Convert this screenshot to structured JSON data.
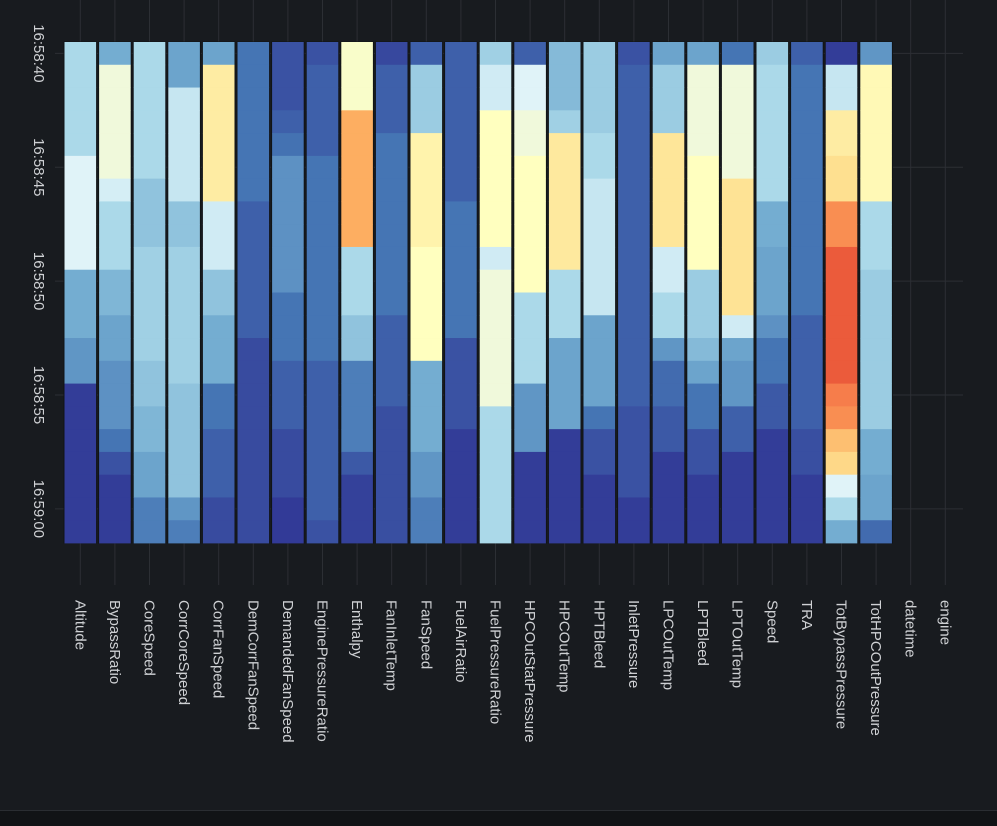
{
  "chart_data": {
    "type": "heatmap",
    "title": "",
    "xlabel": "",
    "ylabel": "",
    "x": [
      "Altitude",
      "BypassRatio",
      "CoreSpeed",
      "CorrCoreSpeed",
      "CorrFanSpeed",
      "DemCorrFanSpeed",
      "DemandedFanSpeed",
      "EnginePressureRatio",
      "Enthalpy",
      "FanInletTemp",
      "FanSpeed",
      "FuelAirRatio",
      "FuelPressureRatio",
      "HPCOutStatPressure",
      "HPCOutTemp",
      "HPTBleed",
      "InletPressure",
      "LPCOutTemp",
      "LPTBleed",
      "LPTOutTemp",
      "Speed",
      "TRA",
      "TotBypassPressure",
      "TotHPCOutPressure",
      "datetime",
      "engine"
    ],
    "y": [
      "16:58:40",
      "16:58:41",
      "16:58:42",
      "16:58:43",
      "16:58:44",
      "16:58:45",
      "16:58:46",
      "16:58:47",
      "16:58:48",
      "16:58:49",
      "16:58:50",
      "16:58:51",
      "16:58:52",
      "16:58:53",
      "16:58:54",
      "16:58:55",
      "16:58:56",
      "16:58:57",
      "16:58:58",
      "16:58:59",
      "16:59:00",
      "16:59:01"
    ],
    "y_tick_labels": [
      "16:58:40",
      "16:58:45",
      "16:58:50",
      "16:58:55",
      "16:59:00"
    ],
    "value_range": [
      0,
      1
    ],
    "colorscale": [
      [
        0,
        "#313695"
      ],
      [
        0.18,
        "#4575b4"
      ],
      [
        0.3,
        "#74add1"
      ],
      [
        0.4,
        "#abd9e9"
      ],
      [
        0.5,
        "#e0f3f8"
      ],
      [
        0.6,
        "#ffffbf"
      ],
      [
        0.7,
        "#fee090"
      ],
      [
        0.82,
        "#fdae61"
      ],
      [
        0.9,
        "#f46d43"
      ],
      [
        1,
        "#d73027"
      ]
    ],
    "grid": true,
    "z": {
      "Altitude": [
        0.4,
        0.4,
        0.4,
        0.4,
        0.4,
        0.5,
        0.5,
        0.5,
        0.5,
        0.5,
        0.3,
        0.3,
        0.3,
        0.25,
        0.25,
        0.02,
        0.02,
        0.02,
        0.02,
        0.02,
        0.02,
        0.02
      ],
      "BypassRatio": [
        0.3,
        0.55,
        0.55,
        0.55,
        0.55,
        0.55,
        0.48,
        0.4,
        0.4,
        0.4,
        0.32,
        0.32,
        0.28,
        0.28,
        0.24,
        0.24,
        0.24,
        0.18,
        0.08,
        0.02,
        0.02,
        0.02
      ],
      "CoreSpeed": [
        0.4,
        0.4,
        0.4,
        0.4,
        0.4,
        0.4,
        0.35,
        0.35,
        0.35,
        0.38,
        0.38,
        0.38,
        0.38,
        0.38,
        0.35,
        0.35,
        0.32,
        0.32,
        0.28,
        0.28,
        0.2,
        0.2
      ],
      "CorrCoreSpeed": [
        0.28,
        0.28,
        0.45,
        0.45,
        0.45,
        0.45,
        0.45,
        0.35,
        0.35,
        0.38,
        0.38,
        0.38,
        0.38,
        0.38,
        0.38,
        0.35,
        0.35,
        0.35,
        0.35,
        0.35,
        0.25,
        0.2
      ],
      "CorrFanSpeed": [
        0.28,
        0.66,
        0.66,
        0.66,
        0.66,
        0.66,
        0.66,
        0.47,
        0.47,
        0.47,
        0.35,
        0.35,
        0.3,
        0.3,
        0.3,
        0.18,
        0.18,
        0.12,
        0.12,
        0.12,
        0.06,
        0.06
      ],
      "DemCorrFanSpeed": [
        0.18,
        0.18,
        0.18,
        0.18,
        0.18,
        0.18,
        0.18,
        0.12,
        0.12,
        0.12,
        0.12,
        0.12,
        0.12,
        0.06,
        0.06,
        0.06,
        0.06,
        0.06,
        0.06,
        0.06,
        0.06,
        0.06
      ],
      "DemandedFanSpeed": [
        0.08,
        0.08,
        0.08,
        0.12,
        0.17,
        0.24,
        0.24,
        0.24,
        0.24,
        0.24,
        0.24,
        0.18,
        0.18,
        0.18,
        0.12,
        0.12,
        0.12,
        0.06,
        0.06,
        0.06,
        0.01,
        0.01
      ],
      "EnginePressureRatio": [
        0.08,
        0.12,
        0.12,
        0.12,
        0.12,
        0.18,
        0.18,
        0.18,
        0.18,
        0.18,
        0.18,
        0.18,
        0.18,
        0.18,
        0.12,
        0.12,
        0.12,
        0.12,
        0.12,
        0.12,
        0.12,
        0.08
      ],
      "Enthalpy": [
        0.58,
        0.58,
        0.58,
        0.82,
        0.82,
        0.82,
        0.82,
        0.82,
        0.82,
        0.4,
        0.4,
        0.4,
        0.35,
        0.35,
        0.2,
        0.2,
        0.2,
        0.2,
        0.1,
        0.03,
        0.03,
        0.03
      ],
      "FanInletTemp": [
        0.05,
        0.12,
        0.12,
        0.12,
        0.18,
        0.18,
        0.18,
        0.18,
        0.18,
        0.18,
        0.18,
        0.18,
        0.12,
        0.12,
        0.12,
        0.12,
        0.07,
        0.07,
        0.07,
        0.07,
        0.07,
        0.07
      ],
      "FanSpeed": [
        0.12,
        0.37,
        0.37,
        0.37,
        0.64,
        0.64,
        0.64,
        0.64,
        0.64,
        0.6,
        0.6,
        0.6,
        0.6,
        0.6,
        0.3,
        0.3,
        0.3,
        0.3,
        0.25,
        0.25,
        0.2,
        0.2
      ],
      "FuelAirRatio": [
        0.12,
        0.12,
        0.12,
        0.12,
        0.12,
        0.12,
        0.12,
        0.18,
        0.18,
        0.18,
        0.18,
        0.18,
        0.18,
        0.08,
        0.08,
        0.08,
        0.08,
        0.02,
        0.02,
        0.02,
        0.02,
        0.02
      ],
      "FuelPressureRatio": [
        0.38,
        0.47,
        0.47,
        0.6,
        0.6,
        0.6,
        0.6,
        0.6,
        0.6,
        0.47,
        0.55,
        0.55,
        0.55,
        0.55,
        0.55,
        0.55,
        0.4,
        0.4,
        0.4,
        0.4,
        0.4,
        0.4
      ],
      "HPCOutStatPressure": [
        0.12,
        0.5,
        0.5,
        0.55,
        0.55,
        0.6,
        0.6,
        0.6,
        0.6,
        0.6,
        0.6,
        0.4,
        0.4,
        0.4,
        0.4,
        0.25,
        0.25,
        0.25,
        0.02,
        0.02,
        0.02,
        0.02
      ],
      "HPCOutTemp": [
        0.33,
        0.33,
        0.33,
        0.38,
        0.67,
        0.67,
        0.67,
        0.67,
        0.67,
        0.67,
        0.4,
        0.4,
        0.4,
        0.28,
        0.28,
        0.28,
        0.28,
        0.02,
        0.02,
        0.02,
        0.02,
        0.02
      ],
      "HPTBleed": [
        0.37,
        0.37,
        0.37,
        0.37,
        0.4,
        0.4,
        0.45,
        0.45,
        0.45,
        0.45,
        0.45,
        0.45,
        0.28,
        0.28,
        0.28,
        0.28,
        0.18,
        0.08,
        0.08,
        0.02,
        0.02,
        0.02
      ],
      "InletPressure": [
        0.08,
        0.12,
        0.12,
        0.12,
        0.12,
        0.12,
        0.12,
        0.12,
        0.12,
        0.12,
        0.12,
        0.12,
        0.12,
        0.12,
        0.12,
        0.12,
        0.08,
        0.08,
        0.08,
        0.08,
        0.02,
        0.02
      ],
      "LPCOutTemp": [
        0.28,
        0.37,
        0.37,
        0.37,
        0.68,
        0.68,
        0.68,
        0.68,
        0.68,
        0.47,
        0.47,
        0.4,
        0.4,
        0.25,
        0.15,
        0.15,
        0.1,
        0.1,
        0.02,
        0.02,
        0.02,
        0.02
      ],
      "LPTBleed": [
        0.28,
        0.55,
        0.55,
        0.55,
        0.55,
        0.6,
        0.6,
        0.6,
        0.6,
        0.6,
        0.37,
        0.37,
        0.37,
        0.33,
        0.28,
        0.18,
        0.18,
        0.08,
        0.08,
        0.02,
        0.02,
        0.02
      ],
      "LPTOutTemp": [
        0.18,
        0.55,
        0.55,
        0.55,
        0.55,
        0.55,
        0.69,
        0.69,
        0.69,
        0.69,
        0.69,
        0.69,
        0.47,
        0.28,
        0.25,
        0.25,
        0.12,
        0.12,
        0.02,
        0.02,
        0.02,
        0.02
      ],
      "Speed": [
        0.37,
        0.4,
        0.4,
        0.4,
        0.4,
        0.4,
        0.4,
        0.3,
        0.3,
        0.28,
        0.28,
        0.28,
        0.24,
        0.18,
        0.18,
        0.1,
        0.1,
        0.02,
        0.02,
        0.02,
        0.02,
        0.02
      ],
      "TRA": [
        0.12,
        0.18,
        0.18,
        0.18,
        0.18,
        0.18,
        0.18,
        0.18,
        0.18,
        0.18,
        0.18,
        0.18,
        0.12,
        0.12,
        0.12,
        0.12,
        0.12,
        0.07,
        0.07,
        0.02,
        0.02,
        0.02
      ],
      "TotBypassPressure": [
        0.02,
        0.45,
        0.45,
        0.66,
        0.66,
        0.7,
        0.7,
        0.86,
        0.86,
        0.93,
        0.93,
        0.93,
        0.93,
        0.93,
        0.93,
        0.88,
        0.86,
        0.78,
        0.72,
        0.5,
        0.4,
        0.3
      ],
      "TotHPCOutPressure": [
        0.25,
        0.62,
        0.62,
        0.62,
        0.62,
        0.62,
        0.62,
        0.4,
        0.4,
        0.4,
        0.37,
        0.37,
        0.37,
        0.37,
        0.37,
        0.37,
        0.37,
        0.3,
        0.3,
        0.28,
        0.28,
        0.15
      ]
    }
  }
}
